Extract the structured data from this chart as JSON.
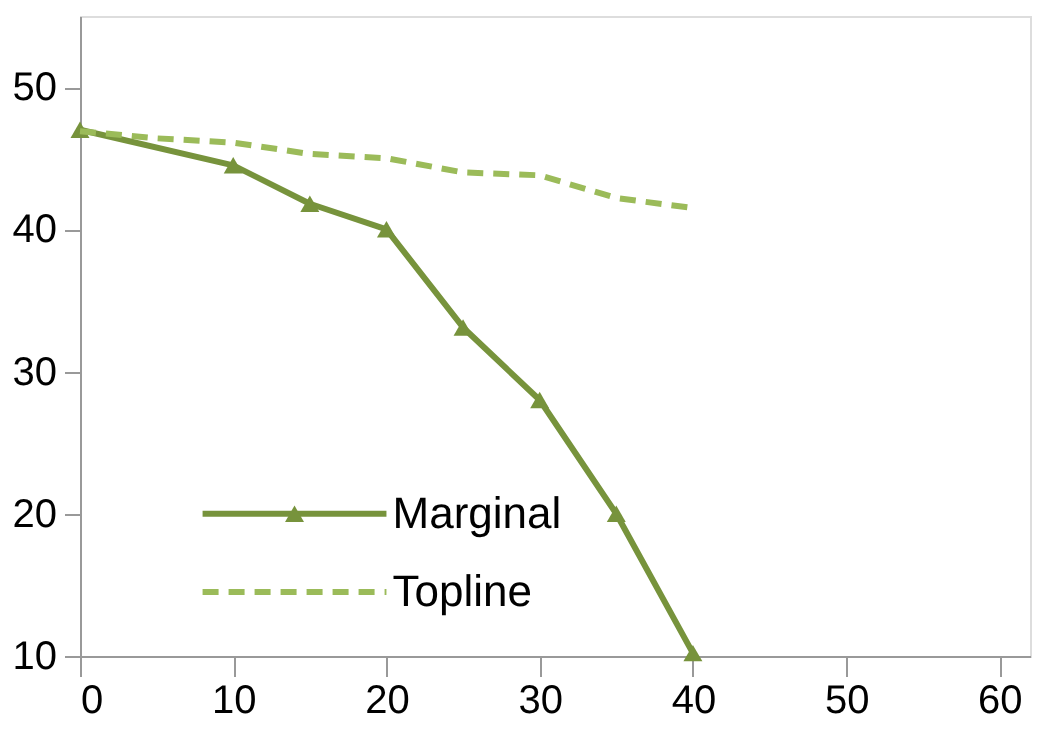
{
  "chart_data": {
    "type": "line",
    "xlim": [
      0,
      62
    ],
    "xticks": [
      0,
      10,
      20,
      30,
      40,
      50,
      60
    ],
    "ylim": [
      10,
      55
    ],
    "yticks": [
      10,
      20,
      30,
      40,
      50
    ],
    "grid": false,
    "legend": "bottom left",
    "series": [
      {
        "name": "Marginal",
        "color": "#77933c",
        "marker": "triangle",
        "line_style": "solid",
        "x": [
          0,
          10,
          15,
          20,
          25,
          30,
          35,
          40
        ],
        "values": [
          47.0,
          44.5,
          41.8,
          40.0,
          33.1,
          28.0,
          20.0,
          10.2
        ]
      },
      {
        "name": "Topline",
        "color": "#9bbb59",
        "marker": "none",
        "line_style": "dashed",
        "x": [
          0,
          5,
          10,
          15,
          20,
          25,
          30,
          35,
          40
        ],
        "values": [
          46.9,
          46.4,
          46.1,
          45.3,
          45.0,
          44.0,
          43.8,
          42.2,
          41.5
        ]
      }
    ]
  }
}
